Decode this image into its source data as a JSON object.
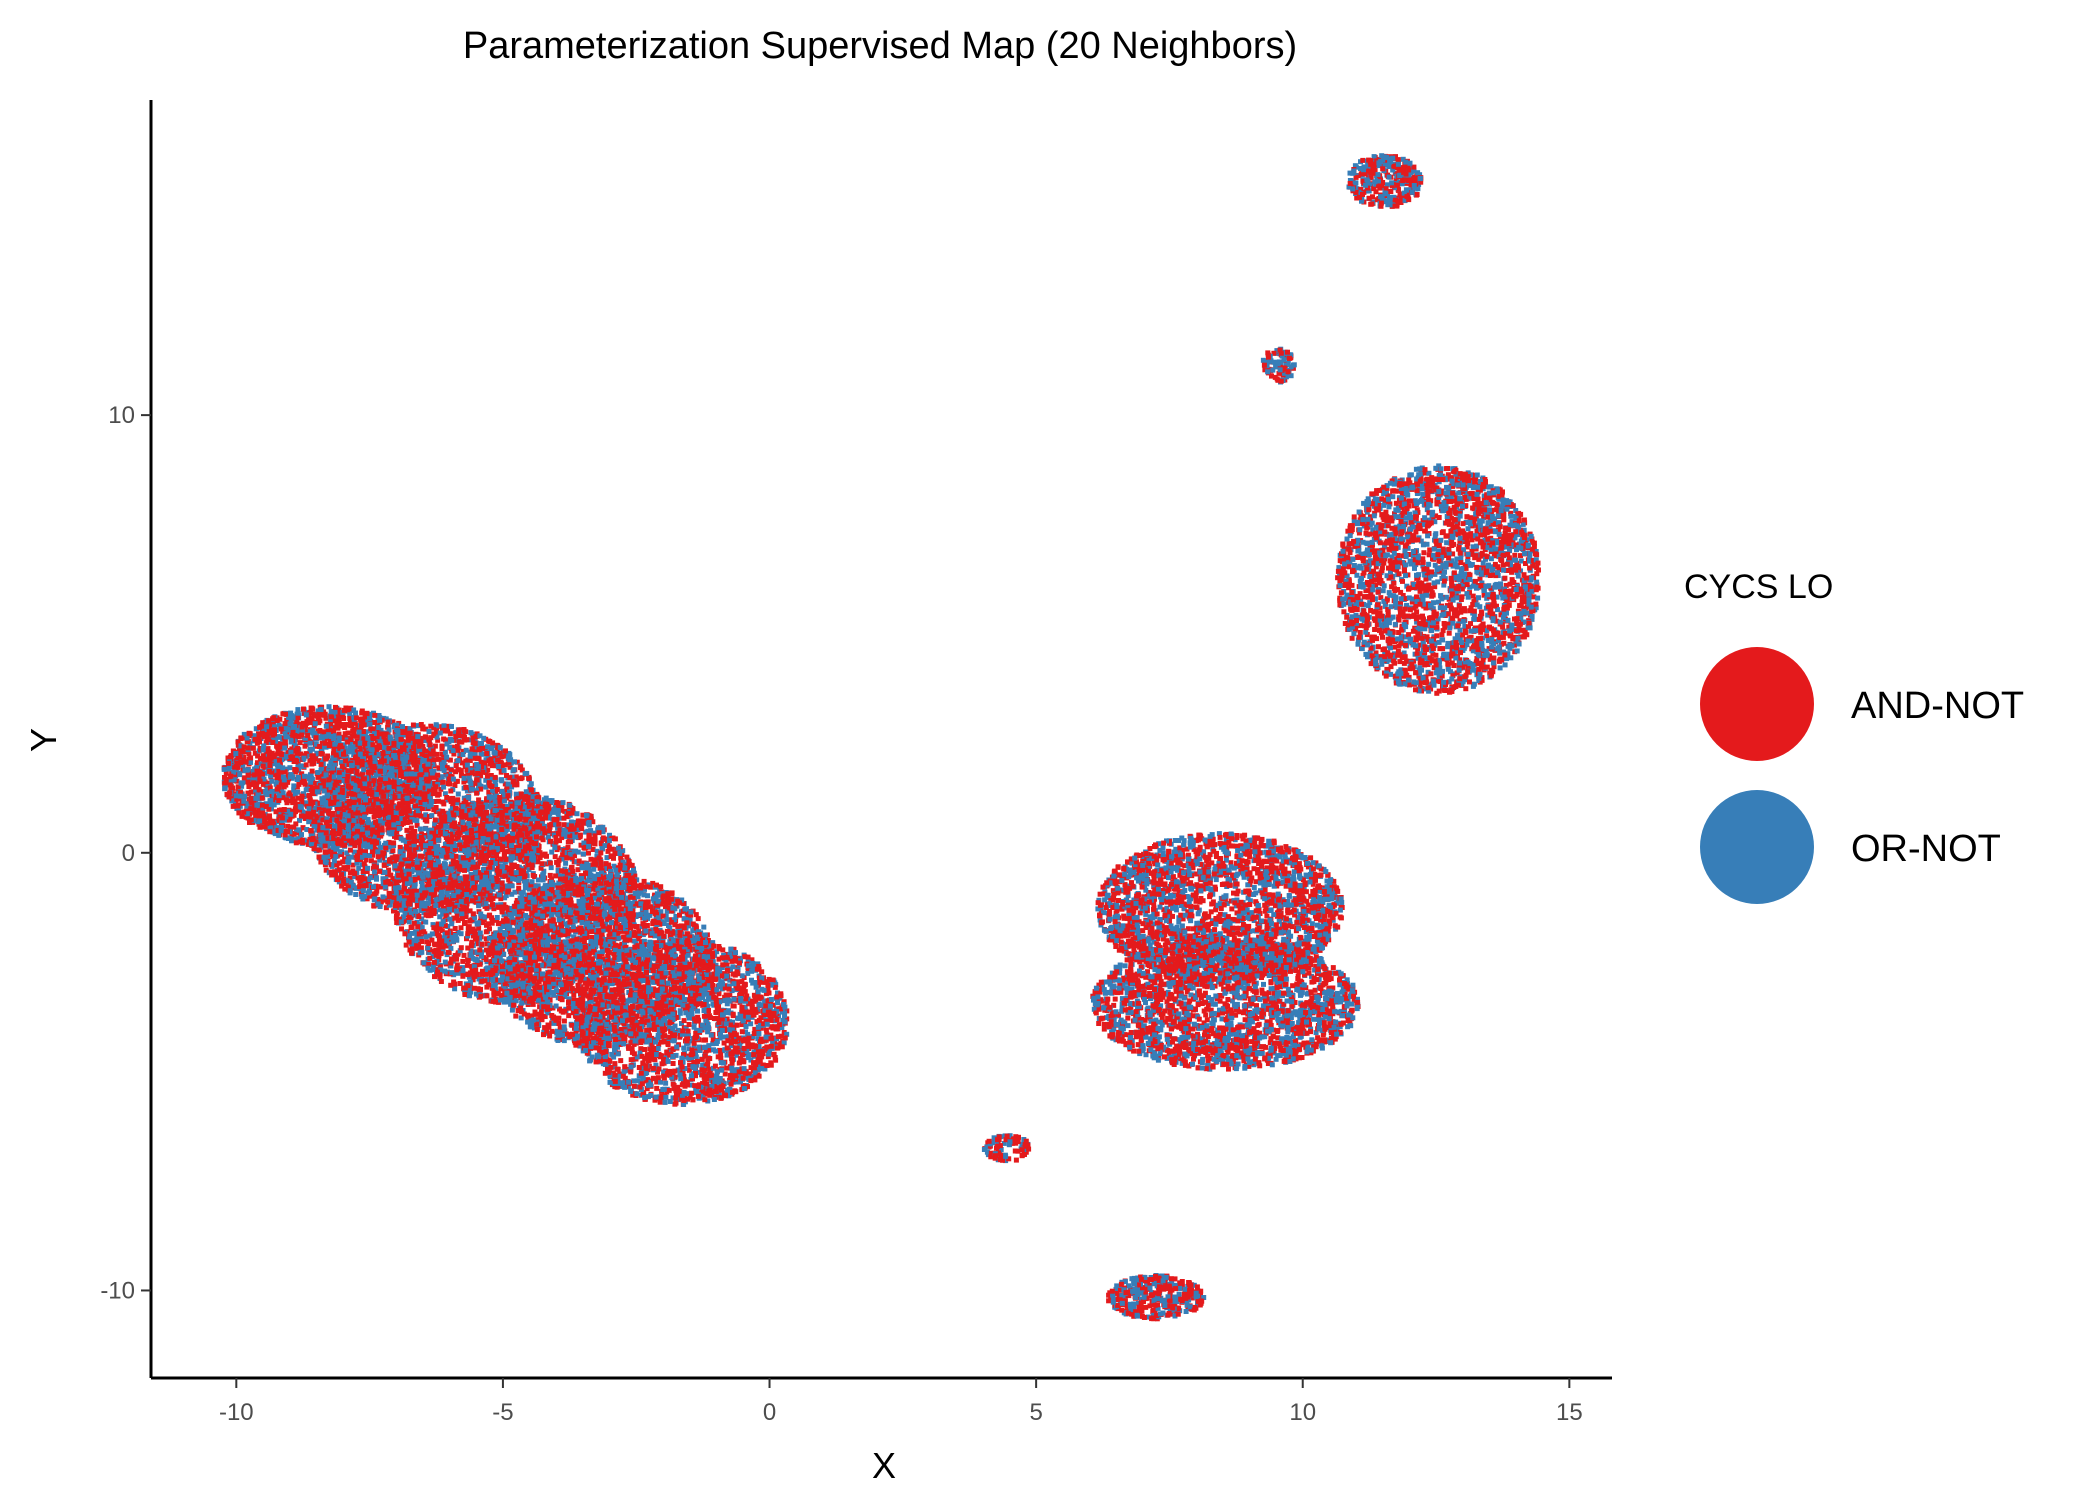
{
  "chart_data": {
    "type": "scatter",
    "title": "Parameterization Supervised Map (20 Neighbors)",
    "xlabel": "X",
    "ylabel": "Y",
    "xlim": [
      -11.6,
      15.8
    ],
    "ylim": [
      -12.0,
      17.2
    ],
    "xticks": [
      -10,
      -5,
      0,
      5,
      10,
      15
    ],
    "yticks": [
      -10,
      0,
      10
    ],
    "xtick_labels": [
      "-10",
      "-5",
      "0",
      "5",
      "10",
      "15"
    ],
    "ytick_labels": [
      "-10",
      "0",
      "10"
    ],
    "grid": false,
    "legend": {
      "title": "CYCS LO",
      "placement": "right",
      "entries": [
        {
          "label": "AND-NOT",
          "color": "#e41a1c"
        },
        {
          "label": "OR-NOT",
          "color": "#377eb8"
        }
      ]
    },
    "series": [
      {
        "name": "AND-NOT",
        "color": "#e41a1c"
      },
      {
        "name": "OR-NOT",
        "color": "#377eb8"
      }
    ],
    "clusters": [
      {
        "id": "large-left-1",
        "cx": -8.3,
        "cy": 1.8,
        "rx": 2.0,
        "ry": 1.6,
        "count": 2200
      },
      {
        "id": "large-left-2",
        "cx": -6.5,
        "cy": 0.8,
        "rx": 2.2,
        "ry": 2.2,
        "count": 2600
      },
      {
        "id": "large-left-3",
        "cx": -4.8,
        "cy": -1.0,
        "rx": 2.3,
        "ry": 2.4,
        "count": 2800
      },
      {
        "id": "large-left-4",
        "cx": -3.2,
        "cy": -2.4,
        "rx": 2.1,
        "ry": 2.0,
        "count": 2200
      },
      {
        "id": "large-left-5",
        "cx": -1.7,
        "cy": -3.8,
        "rx": 2.0,
        "ry": 1.9,
        "count": 2100
      },
      {
        "id": "middle-upper",
        "cx": 8.4,
        "cy": -1.2,
        "rx": 2.3,
        "ry": 1.7,
        "count": 2300
      },
      {
        "id": "middle-lower",
        "cx": 8.5,
        "cy": -3.4,
        "rx": 2.5,
        "ry": 1.5,
        "count": 2300
      },
      {
        "id": "right-block",
        "cx": 12.5,
        "cy": 6.3,
        "rx": 1.9,
        "ry": 2.6,
        "count": 2600
      },
      {
        "id": "top-small",
        "cx": 11.5,
        "cy": 15.4,
        "rx": 0.7,
        "ry": 0.6,
        "count": 320
      },
      {
        "id": "upper-tiny",
        "cx": 9.5,
        "cy": 11.2,
        "rx": 0.3,
        "ry": 0.4,
        "count": 90
      },
      {
        "id": "lower-tiny",
        "cx": 4.4,
        "cy": -6.7,
        "rx": 0.45,
        "ry": 0.3,
        "count": 90
      },
      {
        "id": "bottom-small",
        "cx": 7.2,
        "cy": -10.1,
        "rx": 0.9,
        "ry": 0.5,
        "count": 360
      }
    ]
  }
}
